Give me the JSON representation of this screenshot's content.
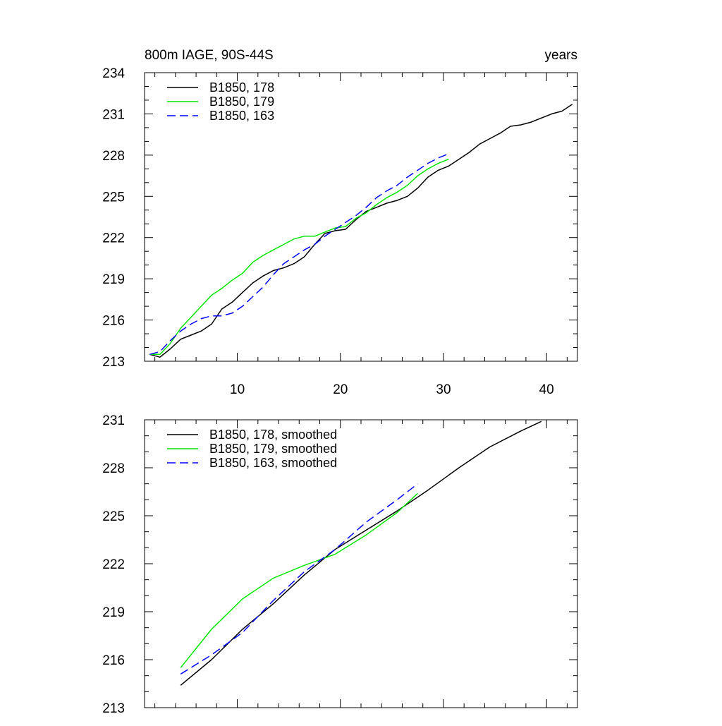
{
  "chart_data": [
    {
      "type": "line",
      "title": "800m IAGE, 90S-44S",
      "units_label": "years",
      "xlim": [
        1,
        43
      ],
      "ylim": [
        213,
        234
      ],
      "xticks": [
        10,
        20,
        30,
        40
      ],
      "xtick_labels": [
        "10",
        "20",
        "30",
        "40"
      ],
      "yticks": [
        213,
        216,
        219,
        222,
        225,
        228,
        231,
        234
      ],
      "ytick_labels": [
        "213",
        "216",
        "219",
        "222",
        "225",
        "228",
        "231",
        "234"
      ],
      "legend_position": "top-left",
      "grid": false,
      "series": [
        {
          "name": "B1850, 178",
          "color": "#000000",
          "dash": "solid",
          "x": [
            1.5,
            2.5,
            3.5,
            4.5,
            5.5,
            6.5,
            7.5,
            8.5,
            9.5,
            10.5,
            11.5,
            12.5,
            13.5,
            14.5,
            15.5,
            16.5,
            17.5,
            18.5,
            19.5,
            20.5,
            21.5,
            22.5,
            23.5,
            24.5,
            25.5,
            26.5,
            27.5,
            28.5,
            29.5,
            30.5,
            31.5,
            32.5,
            33.5,
            34.5,
            35.5,
            36.5,
            37.5,
            38.5,
            39.5,
            40.5,
            41.5,
            42.5
          ],
          "y": [
            213.5,
            213.3,
            213.9,
            214.6,
            214.9,
            215.2,
            215.7,
            216.8,
            217.3,
            218.0,
            218.7,
            219.2,
            219.6,
            219.8,
            220.1,
            220.6,
            221.5,
            222.3,
            222.5,
            222.6,
            223.3,
            223.9,
            224.2,
            224.5,
            224.7,
            225.0,
            225.6,
            226.4,
            226.9,
            227.2,
            227.7,
            228.2,
            228.8,
            229.2,
            229.6,
            230.1,
            230.2,
            230.4,
            230.7,
            231.0,
            231.2,
            231.7
          ]
        },
        {
          "name": "B1850, 179",
          "color": "#00e600",
          "dash": "solid",
          "x": [
            1.5,
            2.5,
            3.5,
            4.5,
            5.5,
            6.5,
            7.5,
            8.5,
            9.5,
            10.5,
            11.5,
            12.5,
            13.5,
            14.5,
            15.5,
            16.5,
            17.5,
            18.5,
            19.5,
            20.5,
            21.5,
            22.5,
            23.5,
            24.5,
            25.5,
            26.5,
            27.5,
            28.5,
            29.5,
            30.5
          ],
          "y": [
            213.5,
            213.5,
            214.3,
            215.4,
            216.2,
            217.0,
            217.8,
            218.3,
            218.9,
            219.4,
            220.2,
            220.7,
            221.1,
            221.5,
            221.9,
            222.1,
            222.1,
            222.4,
            222.7,
            222.8,
            223.4,
            223.8,
            224.4,
            224.9,
            225.3,
            225.8,
            226.5,
            227.0,
            227.4,
            227.7
          ]
        },
        {
          "name": "B1850, 163",
          "color": "#0000ff",
          "dash": "dashed",
          "x": [
            1.5,
            2.5,
            3.5,
            4.5,
            5.5,
            6.5,
            7.5,
            8.5,
            9.5,
            10.5,
            11.5,
            12.5,
            13.5,
            14.5,
            15.5,
            16.5,
            17.5,
            18.5,
            19.5,
            20.5,
            21.5,
            22.5,
            23.5,
            24.5,
            25.5,
            26.5,
            27.5,
            28.5,
            29.5,
            30.5
          ],
          "y": [
            213.5,
            213.7,
            214.5,
            215.2,
            215.7,
            216.1,
            216.3,
            216.3,
            216.5,
            217.0,
            217.7,
            218.4,
            219.3,
            220.1,
            220.6,
            221.1,
            221.5,
            222.1,
            222.6,
            223.1,
            223.6,
            224.2,
            224.9,
            225.4,
            225.8,
            226.4,
            226.9,
            227.4,
            227.8,
            228.1
          ]
        }
      ]
    },
    {
      "type": "line",
      "title": "",
      "xlim": [
        1,
        43
      ],
      "ylim": [
        213,
        231
      ],
      "xticks": [
        10,
        20,
        30,
        40
      ],
      "yticks": [
        213,
        216,
        219,
        222,
        225,
        228,
        231
      ],
      "ytick_labels": [
        "213",
        "216",
        "219",
        "222",
        "225",
        "228",
        "231"
      ],
      "legend_position": "top-left",
      "grid": false,
      "series": [
        {
          "name": "B1850, 178, smoothed",
          "color": "#000000",
          "dash": "solid",
          "x": [
            4.5,
            7.5,
            10.5,
            13.5,
            16.5,
            19.5,
            22.5,
            25.5,
            28.5,
            31.5,
            34.5,
            37.5,
            39.5
          ],
          "y": [
            214.4,
            216.0,
            217.9,
            219.5,
            221.3,
            222.9,
            224.1,
            225.3,
            226.6,
            228.0,
            229.3,
            230.3,
            230.9
          ]
        },
        {
          "name": "B1850, 179, smoothed",
          "color": "#00e600",
          "dash": "solid",
          "x": [
            4.5,
            7.5,
            10.5,
            13.5,
            16.5,
            19.5,
            22.5,
            25.5,
            27.5
          ],
          "y": [
            215.5,
            217.9,
            219.8,
            221.1,
            221.9,
            222.6,
            223.8,
            225.2,
            226.4
          ]
        },
        {
          "name": "B1850, 163, smoothed",
          "color": "#0000ff",
          "dash": "dashed",
          "x": [
            4.5,
            7.5,
            10.5,
            13.5,
            16.5,
            19.5,
            22.5,
            25.5,
            27.5
          ],
          "y": [
            215.1,
            216.3,
            217.7,
            219.7,
            221.5,
            222.9,
            224.6,
            226.0,
            227.0
          ]
        }
      ]
    }
  ]
}
